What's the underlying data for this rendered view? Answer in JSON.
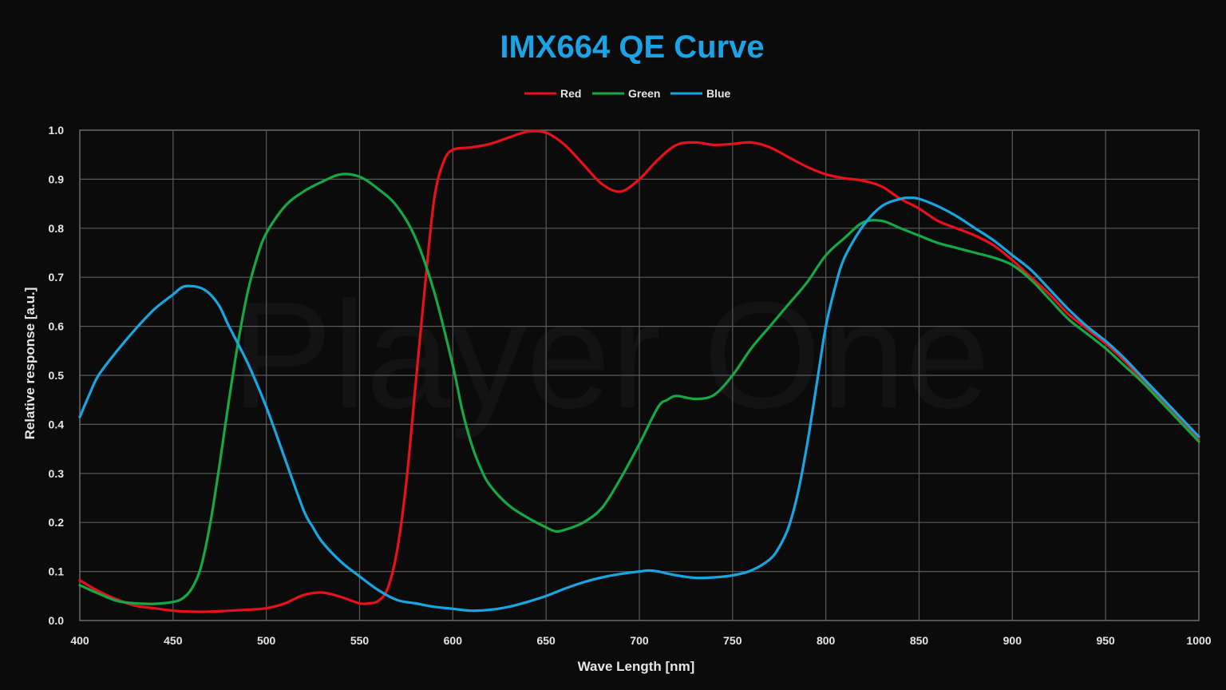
{
  "chart_data": {
    "type": "line",
    "title": "IMX664 QE Curve",
    "title_color": "#1aa3e6",
    "xlabel": "Wave Length [nm]",
    "ylabel": "Relative response [a.u.]",
    "xlim": [
      400,
      1000
    ],
    "ylim": [
      0,
      1.0
    ],
    "x_ticks": [
      "400",
      "450",
      "500",
      "550",
      "600",
      "650",
      "700",
      "750",
      "800",
      "850",
      "900",
      "950",
      "1000"
    ],
    "y_ticks": [
      "0.0",
      "0.1",
      "0.2",
      "0.3",
      "0.4",
      "0.5",
      "0.6",
      "0.7",
      "0.8",
      "0.9",
      "1.0"
    ],
    "grid": true,
    "legend_position": "top-center",
    "watermark": "Player One",
    "series": [
      {
        "name": "Red",
        "color": "#e8101a",
        "points": [
          [
            400,
            0.082
          ],
          [
            410,
            0.06
          ],
          [
            420,
            0.043
          ],
          [
            430,
            0.03
          ],
          [
            440,
            0.025
          ],
          [
            450,
            0.02
          ],
          [
            460,
            0.018
          ],
          [
            470,
            0.018
          ],
          [
            480,
            0.02
          ],
          [
            490,
            0.022
          ],
          [
            500,
            0.025
          ],
          [
            510,
            0.035
          ],
          [
            520,
            0.052
          ],
          [
            530,
            0.057
          ],
          [
            540,
            0.048
          ],
          [
            550,
            0.035
          ],
          [
            555,
            0.035
          ],
          [
            560,
            0.04
          ],
          [
            565,
            0.065
          ],
          [
            570,
            0.14
          ],
          [
            575,
            0.28
          ],
          [
            580,
            0.48
          ],
          [
            585,
            0.68
          ],
          [
            590,
            0.86
          ],
          [
            595,
            0.935
          ],
          [
            600,
            0.96
          ],
          [
            610,
            0.965
          ],
          [
            620,
            0.972
          ],
          [
            630,
            0.985
          ],
          [
            640,
            0.997
          ],
          [
            650,
            0.995
          ],
          [
            660,
            0.97
          ],
          [
            670,
            0.93
          ],
          [
            680,
            0.89
          ],
          [
            690,
            0.875
          ],
          [
            700,
            0.9
          ],
          [
            710,
            0.94
          ],
          [
            720,
            0.97
          ],
          [
            730,
            0.975
          ],
          [
            740,
            0.97
          ],
          [
            750,
            0.972
          ],
          [
            760,
            0.975
          ],
          [
            770,
            0.965
          ],
          [
            780,
            0.945
          ],
          [
            790,
            0.925
          ],
          [
            800,
            0.91
          ],
          [
            810,
            0.902
          ],
          [
            820,
            0.897
          ],
          [
            830,
            0.885
          ],
          [
            840,
            0.86
          ],
          [
            850,
            0.84
          ],
          [
            860,
            0.815
          ],
          [
            870,
            0.8
          ],
          [
            880,
            0.785
          ],
          [
            890,
            0.765
          ],
          [
            900,
            0.735
          ],
          [
            910,
            0.7
          ],
          [
            920,
            0.665
          ],
          [
            930,
            0.625
          ],
          [
            940,
            0.595
          ],
          [
            950,
            0.565
          ],
          [
            960,
            0.53
          ],
          [
            970,
            0.49
          ],
          [
            980,
            0.45
          ],
          [
            990,
            0.41
          ],
          [
            1000,
            0.37
          ]
        ]
      },
      {
        "name": "Green",
        "color": "#15a845",
        "points": [
          [
            400,
            0.072
          ],
          [
            410,
            0.055
          ],
          [
            420,
            0.04
          ],
          [
            430,
            0.035
          ],
          [
            440,
            0.034
          ],
          [
            450,
            0.038
          ],
          [
            455,
            0.045
          ],
          [
            460,
            0.065
          ],
          [
            465,
            0.11
          ],
          [
            470,
            0.2
          ],
          [
            475,
            0.32
          ],
          [
            480,
            0.45
          ],
          [
            485,
            0.57
          ],
          [
            490,
            0.67
          ],
          [
            495,
            0.74
          ],
          [
            500,
            0.79
          ],
          [
            510,
            0.845
          ],
          [
            520,
            0.875
          ],
          [
            530,
            0.895
          ],
          [
            540,
            0.91
          ],
          [
            550,
            0.905
          ],
          [
            560,
            0.88
          ],
          [
            570,
            0.845
          ],
          [
            580,
            0.78
          ],
          [
            590,
            0.67
          ],
          [
            600,
            0.52
          ],
          [
            605,
            0.43
          ],
          [
            610,
            0.36
          ],
          [
            615,
            0.31
          ],
          [
            620,
            0.275
          ],
          [
            630,
            0.235
          ],
          [
            640,
            0.21
          ],
          [
            650,
            0.19
          ],
          [
            655,
            0.182
          ],
          [
            660,
            0.185
          ],
          [
            670,
            0.2
          ],
          [
            680,
            0.23
          ],
          [
            690,
            0.29
          ],
          [
            700,
            0.36
          ],
          [
            710,
            0.435
          ],
          [
            715,
            0.45
          ],
          [
            720,
            0.458
          ],
          [
            730,
            0.452
          ],
          [
            740,
            0.46
          ],
          [
            750,
            0.5
          ],
          [
            760,
            0.555
          ],
          [
            770,
            0.6
          ],
          [
            780,
            0.645
          ],
          [
            790,
            0.69
          ],
          [
            800,
            0.745
          ],
          [
            810,
            0.78
          ],
          [
            820,
            0.812
          ],
          [
            830,
            0.815
          ],
          [
            840,
            0.8
          ],
          [
            850,
            0.785
          ],
          [
            860,
            0.77
          ],
          [
            870,
            0.76
          ],
          [
            880,
            0.75
          ],
          [
            890,
            0.74
          ],
          [
            900,
            0.725
          ],
          [
            910,
            0.695
          ],
          [
            920,
            0.655
          ],
          [
            930,
            0.615
          ],
          [
            940,
            0.585
          ],
          [
            950,
            0.555
          ],
          [
            960,
            0.52
          ],
          [
            970,
            0.485
          ],
          [
            980,
            0.445
          ],
          [
            990,
            0.405
          ],
          [
            1000,
            0.365
          ]
        ]
      },
      {
        "name": "Blue",
        "color": "#18a6e2",
        "points": [
          [
            400,
            0.415
          ],
          [
            405,
            0.46
          ],
          [
            410,
            0.5
          ],
          [
            420,
            0.55
          ],
          [
            430,
            0.595
          ],
          [
            440,
            0.635
          ],
          [
            450,
            0.665
          ],
          [
            455,
            0.68
          ],
          [
            460,
            0.682
          ],
          [
            465,
            0.678
          ],
          [
            470,
            0.665
          ],
          [
            475,
            0.64
          ],
          [
            480,
            0.6
          ],
          [
            490,
            0.525
          ],
          [
            500,
            0.435
          ],
          [
            510,
            0.33
          ],
          [
            520,
            0.225
          ],
          [
            525,
            0.19
          ],
          [
            530,
            0.16
          ],
          [
            540,
            0.12
          ],
          [
            550,
            0.09
          ],
          [
            560,
            0.062
          ],
          [
            570,
            0.042
          ],
          [
            580,
            0.035
          ],
          [
            590,
            0.028
          ],
          [
            600,
            0.024
          ],
          [
            610,
            0.02
          ],
          [
            620,
            0.022
          ],
          [
            630,
            0.028
          ],
          [
            640,
            0.038
          ],
          [
            650,
            0.05
          ],
          [
            660,
            0.065
          ],
          [
            670,
            0.078
          ],
          [
            680,
            0.088
          ],
          [
            690,
            0.095
          ],
          [
            700,
            0.1
          ],
          [
            705,
            0.102
          ],
          [
            710,
            0.1
          ],
          [
            720,
            0.092
          ],
          [
            730,
            0.087
          ],
          [
            740,
            0.088
          ],
          [
            750,
            0.092
          ],
          [
            760,
            0.102
          ],
          [
            770,
            0.125
          ],
          [
            775,
            0.15
          ],
          [
            780,
            0.19
          ],
          [
            785,
            0.26
          ],
          [
            790,
            0.36
          ],
          [
            795,
            0.48
          ],
          [
            800,
            0.6
          ],
          [
            805,
            0.68
          ],
          [
            810,
            0.74
          ],
          [
            820,
            0.805
          ],
          [
            830,
            0.845
          ],
          [
            840,
            0.86
          ],
          [
            845,
            0.862
          ],
          [
            850,
            0.86
          ],
          [
            860,
            0.845
          ],
          [
            870,
            0.825
          ],
          [
            880,
            0.8
          ],
          [
            890,
            0.775
          ],
          [
            900,
            0.745
          ],
          [
            910,
            0.715
          ],
          [
            920,
            0.675
          ],
          [
            930,
            0.635
          ],
          [
            940,
            0.6
          ],
          [
            950,
            0.57
          ],
          [
            960,
            0.535
          ],
          [
            970,
            0.495
          ],
          [
            980,
            0.455
          ],
          [
            990,
            0.415
          ],
          [
            1000,
            0.375
          ]
        ]
      }
    ]
  }
}
